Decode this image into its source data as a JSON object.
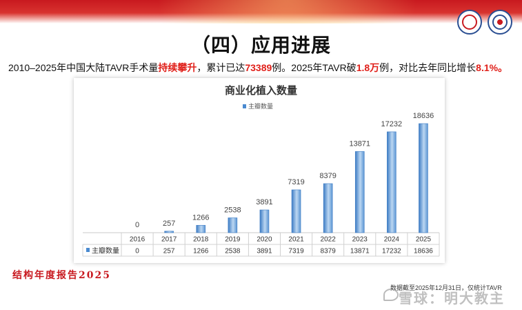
{
  "page": {
    "title": "（四）应用进展",
    "summary": {
      "part1": "2010–2025年中国大陆TAVR手术量",
      "hl1": "持续攀升",
      "part2": "，累计已达",
      "hl2": "73389",
      "part3": "例。2025年TAVR破",
      "hl3": "1.8万",
      "part4": "例，对比去年同比增长",
      "hl4": "8.1%",
      "part5": "。"
    },
    "footer_left": "结构年度报告2025",
    "footer_note": "数据截至2025年12月31日，仅统计TAVR",
    "watermark": "雪球：明大教主"
  },
  "colors": {
    "bar": "#4a8ad0",
    "bar_light": "#bcd7f2",
    "highlight": "#e0201a",
    "brand_red": "#c8191f"
  },
  "chart_data": {
    "type": "bar",
    "title": "商业化植入数量",
    "categories": [
      "2016",
      "2017",
      "2018",
      "2019",
      "2020",
      "2021",
      "2022",
      "2023",
      "2024",
      "2025"
    ],
    "series": [
      {
        "name": "主瓣数量",
        "values": [
          0,
          257,
          1266,
          2538,
          3891,
          7319,
          8379,
          13871,
          17232,
          18636
        ]
      }
    ],
    "data_table": true,
    "legend_position": "top",
    "ylim": [
      0,
      20000
    ]
  }
}
